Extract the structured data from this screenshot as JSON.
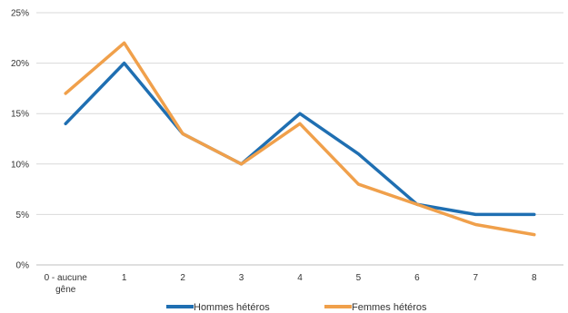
{
  "chart_data": {
    "type": "line",
    "categories": [
      "0 - aucune gêne",
      "1",
      "2",
      "3",
      "4",
      "5",
      "6",
      "7",
      "8"
    ],
    "series": [
      {
        "name": "Hommes hétéros",
        "color": "#1f6fb2",
        "values": [
          14,
          20,
          13,
          10,
          15,
          11,
          6,
          5,
          5
        ]
      },
      {
        "name": "Femmes hétéros",
        "color": "#f0a04b",
        "values": [
          17,
          22,
          13,
          10,
          14,
          8,
          6,
          4,
          3
        ]
      }
    ],
    "ylim": [
      0,
      25
    ],
    "yticks": [
      "0%",
      "5%",
      "10%",
      "15%",
      "20%",
      "25%"
    ],
    "grid": true,
    "legend": "bottom"
  }
}
